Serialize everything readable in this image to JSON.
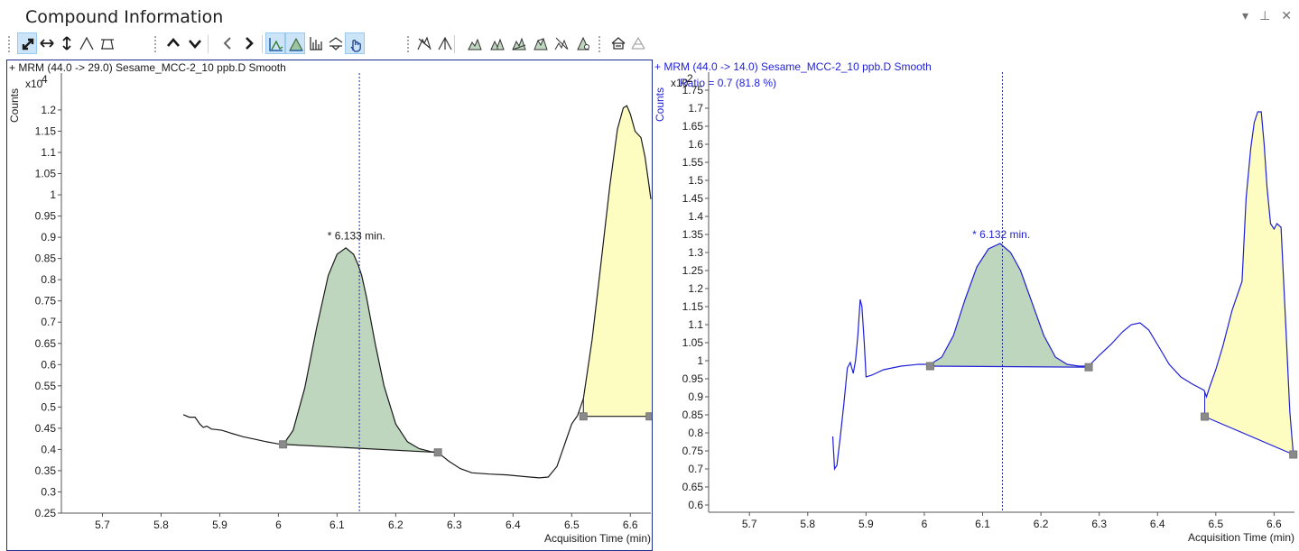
{
  "window": {
    "title": "Compound Information",
    "controls": [
      {
        "name": "dropdown-icon",
        "glyph": "▾"
      },
      {
        "name": "pin-icon",
        "glyph": "⊥"
      },
      {
        "name": "close-icon",
        "glyph": "✕"
      }
    ]
  },
  "toolbar": {
    "buttons": [
      {
        "name": "autoscale-xy-icon",
        "active": true
      },
      {
        "name": "autoscale-x-icon",
        "active": false
      },
      {
        "name": "autoscale-y-icon",
        "active": false
      },
      {
        "name": "peak-icon",
        "active": false
      },
      {
        "name": "baseline-icon",
        "active": false
      },
      {
        "name": "previous-up-icon",
        "active": false
      },
      {
        "name": "next-down-icon",
        "active": false
      },
      {
        "name": "previous-left-icon",
        "active": false
      },
      {
        "name": "next-right-icon",
        "active": false
      },
      {
        "name": "overlay-chromatogram-icon",
        "active": true
      },
      {
        "name": "fill-peak-icon",
        "active": true
      },
      {
        "name": "bar-spectrum-icon",
        "active": false
      },
      {
        "name": "link-y-icon",
        "active": false
      },
      {
        "name": "manual-integrate-hand-icon",
        "active": true
      },
      {
        "name": "integrate-peak-icon",
        "active": false
      },
      {
        "name": "split-peak-icon",
        "active": false
      },
      {
        "name": "drop-baseline-icon",
        "active": false
      },
      {
        "name": "valley-baseline-icon",
        "active": false
      },
      {
        "name": "tangent-baseline-icon",
        "active": false
      },
      {
        "name": "merge-peaks-icon",
        "active": false
      },
      {
        "name": "clear-peaks-icon",
        "active": false
      },
      {
        "name": "zero-peak-icon",
        "active": false
      },
      {
        "name": "compare-overlay-icon",
        "active": false
      },
      {
        "name": "disabled-overlay-icon",
        "active": false
      }
    ]
  },
  "colors": {
    "left_trace": "#1a1a1a",
    "right_trace": "#1f1fd6",
    "peak_fill": "#bdd6bd",
    "peak_fill_stroke": "#2d2d2d",
    "yellow_fill": "#fdfdc2",
    "handle": "#8a8a8a",
    "cursor": "#1f2f8f",
    "right_text": "#1f1fd6"
  },
  "panels": [
    {
      "id": "left",
      "header": "+ MRM (44.0 -> 29.0) Sesame_MCC-2_10 ppb.D  Smooth",
      "ratio_text": "",
      "y_axis_label": "Counts",
      "y_multiplier_base": "x10",
      "y_multiplier_exp": "4",
      "x_axis_label": "Acquisition Time (min)",
      "peak_label": "* 6.133 min.",
      "chart_data": {
        "type": "line",
        "x_range": [
          5.63,
          6.635
        ],
        "y_range": [
          0.25,
          1.27
        ],
        "x_ticks": [
          5.7,
          5.8,
          5.9,
          6,
          6.1,
          6.2,
          6.3,
          6.4,
          6.5,
          6.6
        ],
        "x_tick_labels": [
          "5.7",
          "5.8",
          "5.9",
          "6",
          "6.1",
          "6.2",
          "6.3",
          "6.4",
          "6.5",
          "6.6"
        ],
        "y_ticks": [
          0.25,
          0.3,
          0.35,
          0.4,
          0.45,
          0.5,
          0.55,
          0.6,
          0.65,
          0.7,
          0.75,
          0.8,
          0.85,
          0.9,
          0.95,
          1,
          1.05,
          1.1,
          1.15,
          1.2
        ],
        "y_tick_labels": [
          "0.25",
          "0.3",
          "0.35",
          "0.4",
          "0.45",
          "0.5",
          "0.55",
          "0.6",
          "0.65",
          "0.7",
          "0.75",
          "0.8",
          "0.85",
          "0.9",
          "0.95",
          "1",
          "1.05",
          "1.1",
          "1.15",
          "1.2"
        ],
        "series": [
          {
            "x": [
              5.838,
              5.848,
              5.858,
              5.866,
              5.872,
              5.878,
              5.886,
              5.894,
              5.904,
              5.92,
              5.94,
              5.96,
              5.98,
              6.0,
              6.01,
              6.025,
              6.045,
              6.065,
              6.085,
              6.1,
              6.115,
              6.128,
              6.136,
              6.142,
              6.15,
              6.165,
              6.18,
              6.2,
              6.22,
              6.24,
              6.26,
              6.272,
              6.29,
              6.31,
              6.33,
              6.36,
              6.39,
              6.42,
              6.445,
              6.46,
              6.475,
              6.49,
              6.5,
              6.51,
              6.52,
              6.535,
              6.55,
              6.565,
              6.578,
              6.588,
              6.594,
              6.6,
              6.608,
              6.618,
              6.625,
              6.632,
              6.635
            ],
            "y": [
              0.482,
              0.476,
              0.476,
              0.46,
              0.452,
              0.455,
              0.448,
              0.447,
              0.445,
              0.438,
              0.43,
              0.424,
              0.418,
              0.413,
              0.415,
              0.445,
              0.545,
              0.685,
              0.81,
              0.86,
              0.875,
              0.86,
              0.835,
              0.81,
              0.76,
              0.65,
              0.55,
              0.46,
              0.418,
              0.402,
              0.395,
              0.393,
              0.373,
              0.355,
              0.345,
              0.342,
              0.34,
              0.336,
              0.333,
              0.335,
              0.36,
              0.42,
              0.46,
              0.48,
              0.52,
              0.66,
              0.84,
              1.02,
              1.155,
              1.205,
              1.21,
              1.19,
              1.15,
              1.135,
              1.09,
              1.02,
              0.99
            ]
          }
        ],
        "peak_fill": {
          "x_start": 6.008,
          "x_end": 6.272,
          "baseline_y_start": 0.412,
          "baseline_y_end": 0.393
        },
        "yellow_fill": {
          "x_start": 6.52,
          "x_end": 6.635,
          "baseline_y": 0.478
        },
        "handles": [
          [
            6.008,
            0.412
          ],
          [
            6.272,
            0.393
          ],
          [
            6.52,
            0.478
          ],
          [
            6.633,
            0.478
          ]
        ],
        "cursor_x": 6.138,
        "peak_label_at": [
          6.133,
          0.895
        ]
      }
    },
    {
      "id": "right",
      "header": "+ MRM (44.0 -> 14.0) Sesame_MCC-2_10 ppb.D  Smooth",
      "ratio_text": "Ratio = 0.7 (81.8 %)",
      "y_axis_label": "Counts",
      "y_multiplier_base": "x10",
      "y_multiplier_exp": "2",
      "x_axis_label": "Acquisition Time (min)",
      "peak_label": "* 6.132 min.",
      "chart_data": {
        "type": "line",
        "x_range": [
          5.63,
          6.635
        ],
        "y_range": [
          0.58,
          1.78
        ],
        "x_ticks": [
          5.7,
          5.8,
          5.9,
          6,
          6.1,
          6.2,
          6.3,
          6.4,
          6.5,
          6.6
        ],
        "x_tick_labels": [
          "5.7",
          "5.8",
          "5.9",
          "6",
          "6.1",
          "6.2",
          "6.3",
          "6.4",
          "6.5",
          "6.6"
        ],
        "y_ticks": [
          0.6,
          0.65,
          0.7,
          0.75,
          0.8,
          0.85,
          0.9,
          0.95,
          1,
          1.05,
          1.1,
          1.15,
          1.2,
          1.25,
          1.3,
          1.35,
          1.4,
          1.45,
          1.5,
          1.55,
          1.6,
          1.65,
          1.7,
          1.75
        ],
        "y_tick_labels": [
          "0.6",
          "0.65",
          "0.7",
          "0.75",
          "0.8",
          "0.85",
          "0.9",
          "0.95",
          "1",
          "1.05",
          "1.1",
          "1.15",
          "1.2",
          "1.25",
          "1.3",
          "1.35",
          "1.4",
          "1.45",
          "1.5",
          "1.55",
          "1.6",
          "1.65",
          "1.7",
          "1.75"
        ],
        "series": [
          {
            "x": [
              5.843,
              5.846,
              5.85,
              5.856,
              5.862,
              5.868,
              5.873,
              5.878,
              5.882,
              5.886,
              5.89,
              5.893,
              5.897,
              5.9,
              5.91,
              5.93,
              5.96,
              5.99,
              6.01,
              6.03,
              6.05,
              6.07,
              6.09,
              6.11,
              6.13,
              6.148,
              6.165,
              6.185,
              6.205,
              6.225,
              6.245,
              6.265,
              6.282,
              6.3,
              6.32,
              6.34,
              6.355,
              6.37,
              6.385,
              6.4,
              6.42,
              6.44,
              6.46,
              6.472,
              6.48,
              6.484,
              6.49,
              6.5,
              6.512,
              6.528,
              6.545,
              6.552,
              6.56,
              6.566,
              6.572,
              6.578,
              6.583,
              6.588,
              6.594,
              6.6,
              6.605,
              6.612,
              6.62,
              6.627,
              6.633
            ],
            "y": [
              0.79,
              0.7,
              0.71,
              0.79,
              0.88,
              0.98,
              0.995,
              0.965,
              1.0,
              1.07,
              1.17,
              1.15,
              1.05,
              0.955,
              0.96,
              0.975,
              0.985,
              0.99,
              0.99,
              1.01,
              1.07,
              1.17,
              1.26,
              1.31,
              1.325,
              1.3,
              1.25,
              1.16,
              1.07,
              1.01,
              0.99,
              0.985,
              0.985,
              1.015,
              1.045,
              1.08,
              1.1,
              1.105,
              1.085,
              1.045,
              0.99,
              0.955,
              0.935,
              0.925,
              0.918,
              0.9,
              0.93,
              0.975,
              1.04,
              1.14,
              1.22,
              1.45,
              1.59,
              1.66,
              1.69,
              1.69,
              1.6,
              1.48,
              1.38,
              1.365,
              1.38,
              1.37,
              1.1,
              0.86,
              0.74
            ]
          }
        ],
        "peak_fill": {
          "x_start": 6.01,
          "x_end": 6.282,
          "baseline_y_start": 0.985,
          "baseline_y_end": 0.982
        },
        "yellow_fill": {
          "x_start": 6.481,
          "x_end": 6.633,
          "baseline_y_start": 0.845,
          "baseline_y_end": 0.74
        },
        "handles": [
          [
            6.01,
            0.985
          ],
          [
            6.282,
            0.982
          ],
          [
            6.481,
            0.845
          ],
          [
            6.633,
            0.74
          ]
        ],
        "cursor_x": 6.134,
        "peak_label_at": [
          6.132,
          1.34
        ]
      }
    }
  ]
}
